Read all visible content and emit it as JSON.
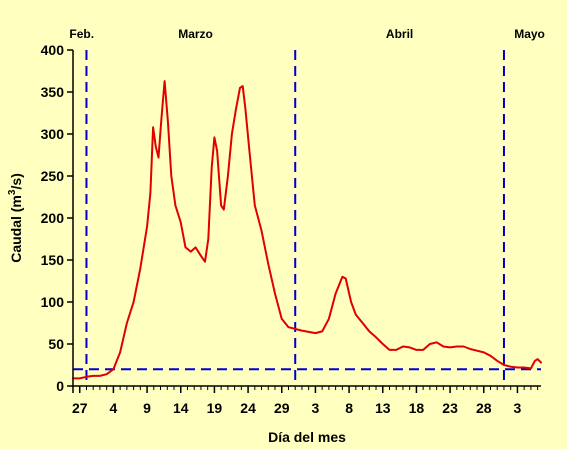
{
  "colors": {
    "background": "#ffffc0",
    "series_line": "#e00000",
    "reference_lines": "#0000cc",
    "axis": "#000000"
  },
  "chart_data": {
    "type": "line",
    "title": "",
    "xlabel": "Día del mes",
    "ylabel_main": "Caudal (m",
    "ylabel_sup": "3",
    "ylabel_tail": "/s)",
    "ylim": [
      0,
      400
    ],
    "yticks": [
      0,
      50,
      100,
      150,
      200,
      250,
      300,
      350,
      400
    ],
    "grid": false,
    "legend": "none",
    "x_unit": "day index from 26 Feb",
    "xlim": [
      0,
      69.5
    ],
    "xticks": [
      {
        "x": 1,
        "label": "27"
      },
      {
        "x": 6,
        "label": "4"
      },
      {
        "x": 11,
        "label": "9"
      },
      {
        "x": 16,
        "label": "14"
      },
      {
        "x": 21,
        "label": "19"
      },
      {
        "x": 26,
        "label": "24"
      },
      {
        "x": 31,
        "label": "29"
      },
      {
        "x": 36,
        "label": "3"
      },
      {
        "x": 41,
        "label": "8"
      },
      {
        "x": 46,
        "label": "13"
      },
      {
        "x": 51,
        "label": "18"
      },
      {
        "x": 56,
        "label": "23"
      },
      {
        "x": 61,
        "label": "28"
      },
      {
        "x": 66,
        "label": "3"
      }
    ],
    "month_labels": [
      {
        "label": "Feb.",
        "x": 1.3
      },
      {
        "label": "Marzo",
        "x": 18.2
      },
      {
        "label": "Abril",
        "x": 48.5
      },
      {
        "label": "Mayo",
        "x": 67.8
      }
    ],
    "reference_lines": {
      "vertical_x": [
        2,
        33,
        64
      ],
      "horizontal_y": 20
    },
    "series": [
      {
        "values": [
          [
            0,
            9
          ],
          [
            1,
            9
          ],
          [
            2,
            11
          ],
          [
            3,
            12
          ],
          [
            4,
            12
          ],
          [
            5,
            14
          ],
          [
            6,
            20
          ],
          [
            7,
            40
          ],
          [
            8,
            75
          ],
          [
            9,
            100
          ],
          [
            10,
            140
          ],
          [
            11,
            190
          ],
          [
            11.5,
            230
          ],
          [
            11.9,
            308
          ],
          [
            12.3,
            285
          ],
          [
            12.7,
            272
          ],
          [
            13.1,
            315
          ],
          [
            13.6,
            363
          ],
          [
            14.1,
            315
          ],
          [
            14.6,
            250
          ],
          [
            15.2,
            215
          ],
          [
            16,
            195
          ],
          [
            16.7,
            165
          ],
          [
            17.5,
            160
          ],
          [
            18.2,
            165
          ],
          [
            19,
            155
          ],
          [
            19.6,
            148
          ],
          [
            20.1,
            175
          ],
          [
            20.6,
            260
          ],
          [
            21,
            296
          ],
          [
            21.4,
            280
          ],
          [
            22,
            215
          ],
          [
            22.4,
            210
          ],
          [
            23,
            250
          ],
          [
            23.6,
            300
          ],
          [
            24.2,
            330
          ],
          [
            24.8,
            355
          ],
          [
            25.2,
            357
          ],
          [
            25.6,
            330
          ],
          [
            26.2,
            280
          ],
          [
            27,
            215
          ],
          [
            28,
            185
          ],
          [
            29,
            145
          ],
          [
            30,
            110
          ],
          [
            31,
            80
          ],
          [
            32,
            70
          ],
          [
            34,
            66
          ],
          [
            36,
            63
          ],
          [
            37,
            65
          ],
          [
            38,
            80
          ],
          [
            39,
            110
          ],
          [
            40,
            130
          ],
          [
            40.5,
            128
          ],
          [
            41.3,
            100
          ],
          [
            42,
            85
          ],
          [
            43,
            75
          ],
          [
            44,
            65
          ],
          [
            45,
            58
          ],
          [
            46,
            50
          ],
          [
            47,
            43
          ],
          [
            48,
            43
          ],
          [
            49,
            47
          ],
          [
            50,
            46
          ],
          [
            51,
            43
          ],
          [
            52,
            43
          ],
          [
            53,
            50
          ],
          [
            54,
            52
          ],
          [
            55,
            47
          ],
          [
            56,
            46
          ],
          [
            57,
            47
          ],
          [
            58,
            47
          ],
          [
            59,
            44
          ],
          [
            60,
            42
          ],
          [
            61,
            40
          ],
          [
            62,
            36
          ],
          [
            63,
            30
          ],
          [
            64,
            25
          ],
          [
            65,
            23
          ],
          [
            66,
            22
          ],
          [
            67,
            22
          ],
          [
            68,
            21
          ],
          [
            68.6,
            30
          ],
          [
            69,
            32
          ],
          [
            69.5,
            28
          ]
        ]
      }
    ]
  }
}
